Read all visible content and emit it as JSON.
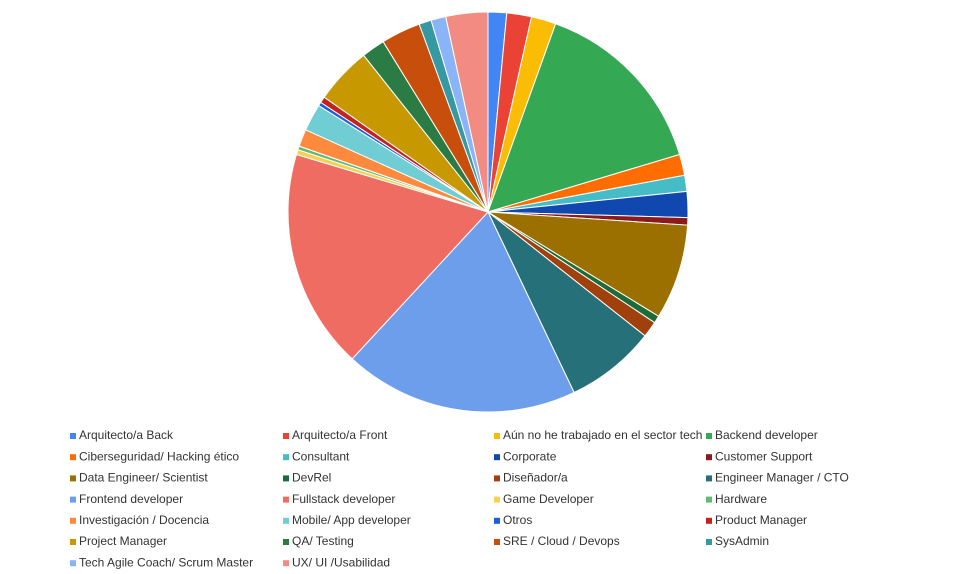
{
  "chart_data": {
    "type": "pie",
    "categories": [
      "Arquitecto/a Back",
      "Arquitecto/a Front",
      "Aún no he trabajado en el sector tech",
      "Backend developer",
      "Ciberseguridad/ Hacking ético",
      "Consultant",
      "Corporate",
      "Customer Support",
      "Data Engineer/ Scientist",
      "DevRel",
      "Diseñador/a",
      "Engineer Manager / CTO",
      "Frontend developer",
      "Fullstack developer",
      "Game Developer",
      "Hardware",
      "Investigación / Docencia",
      "Mobile/ App developer",
      "Otros",
      "Product Manager",
      "Project Manager",
      "QA/ Testing",
      "SRE / Cloud / Devops",
      "SysAdmin",
      "Tech Agile Coach/ Scrum Master",
      "UX/ UI /Usabilidad"
    ],
    "values": [
      1.5,
      2,
      2,
      14.9,
      1.7,
      1.3,
      2.1,
      0.6,
      7.7,
      0.6,
      1.3,
      7.3,
      19,
      17.8,
      0.4,
      0.3,
      1.4,
      2.2,
      0.3,
      0.5,
      4.6,
      1.9,
      3.2,
      1,
      1.2,
      3.4
    ],
    "colors": [
      "#4285f4",
      "#ea4335",
      "#fbbc04",
      "#34a853",
      "#ff6d01",
      "#46bdc6",
      "#1148b0",
      "#8b1a1a",
      "#9b6f00",
      "#1e6b3a",
      "#a0410d",
      "#26707a",
      "#6d9eeb",
      "#ee6c61",
      "#fcd04f",
      "#5fbb75",
      "#ff8a3d",
      "#71cdd4",
      "#1a5fe0",
      "#c5221f",
      "#c79800",
      "#2b7c44",
      "#c84f0b",
      "#3598a3",
      "#8ab4f8",
      "#f28b82"
    ]
  }
}
